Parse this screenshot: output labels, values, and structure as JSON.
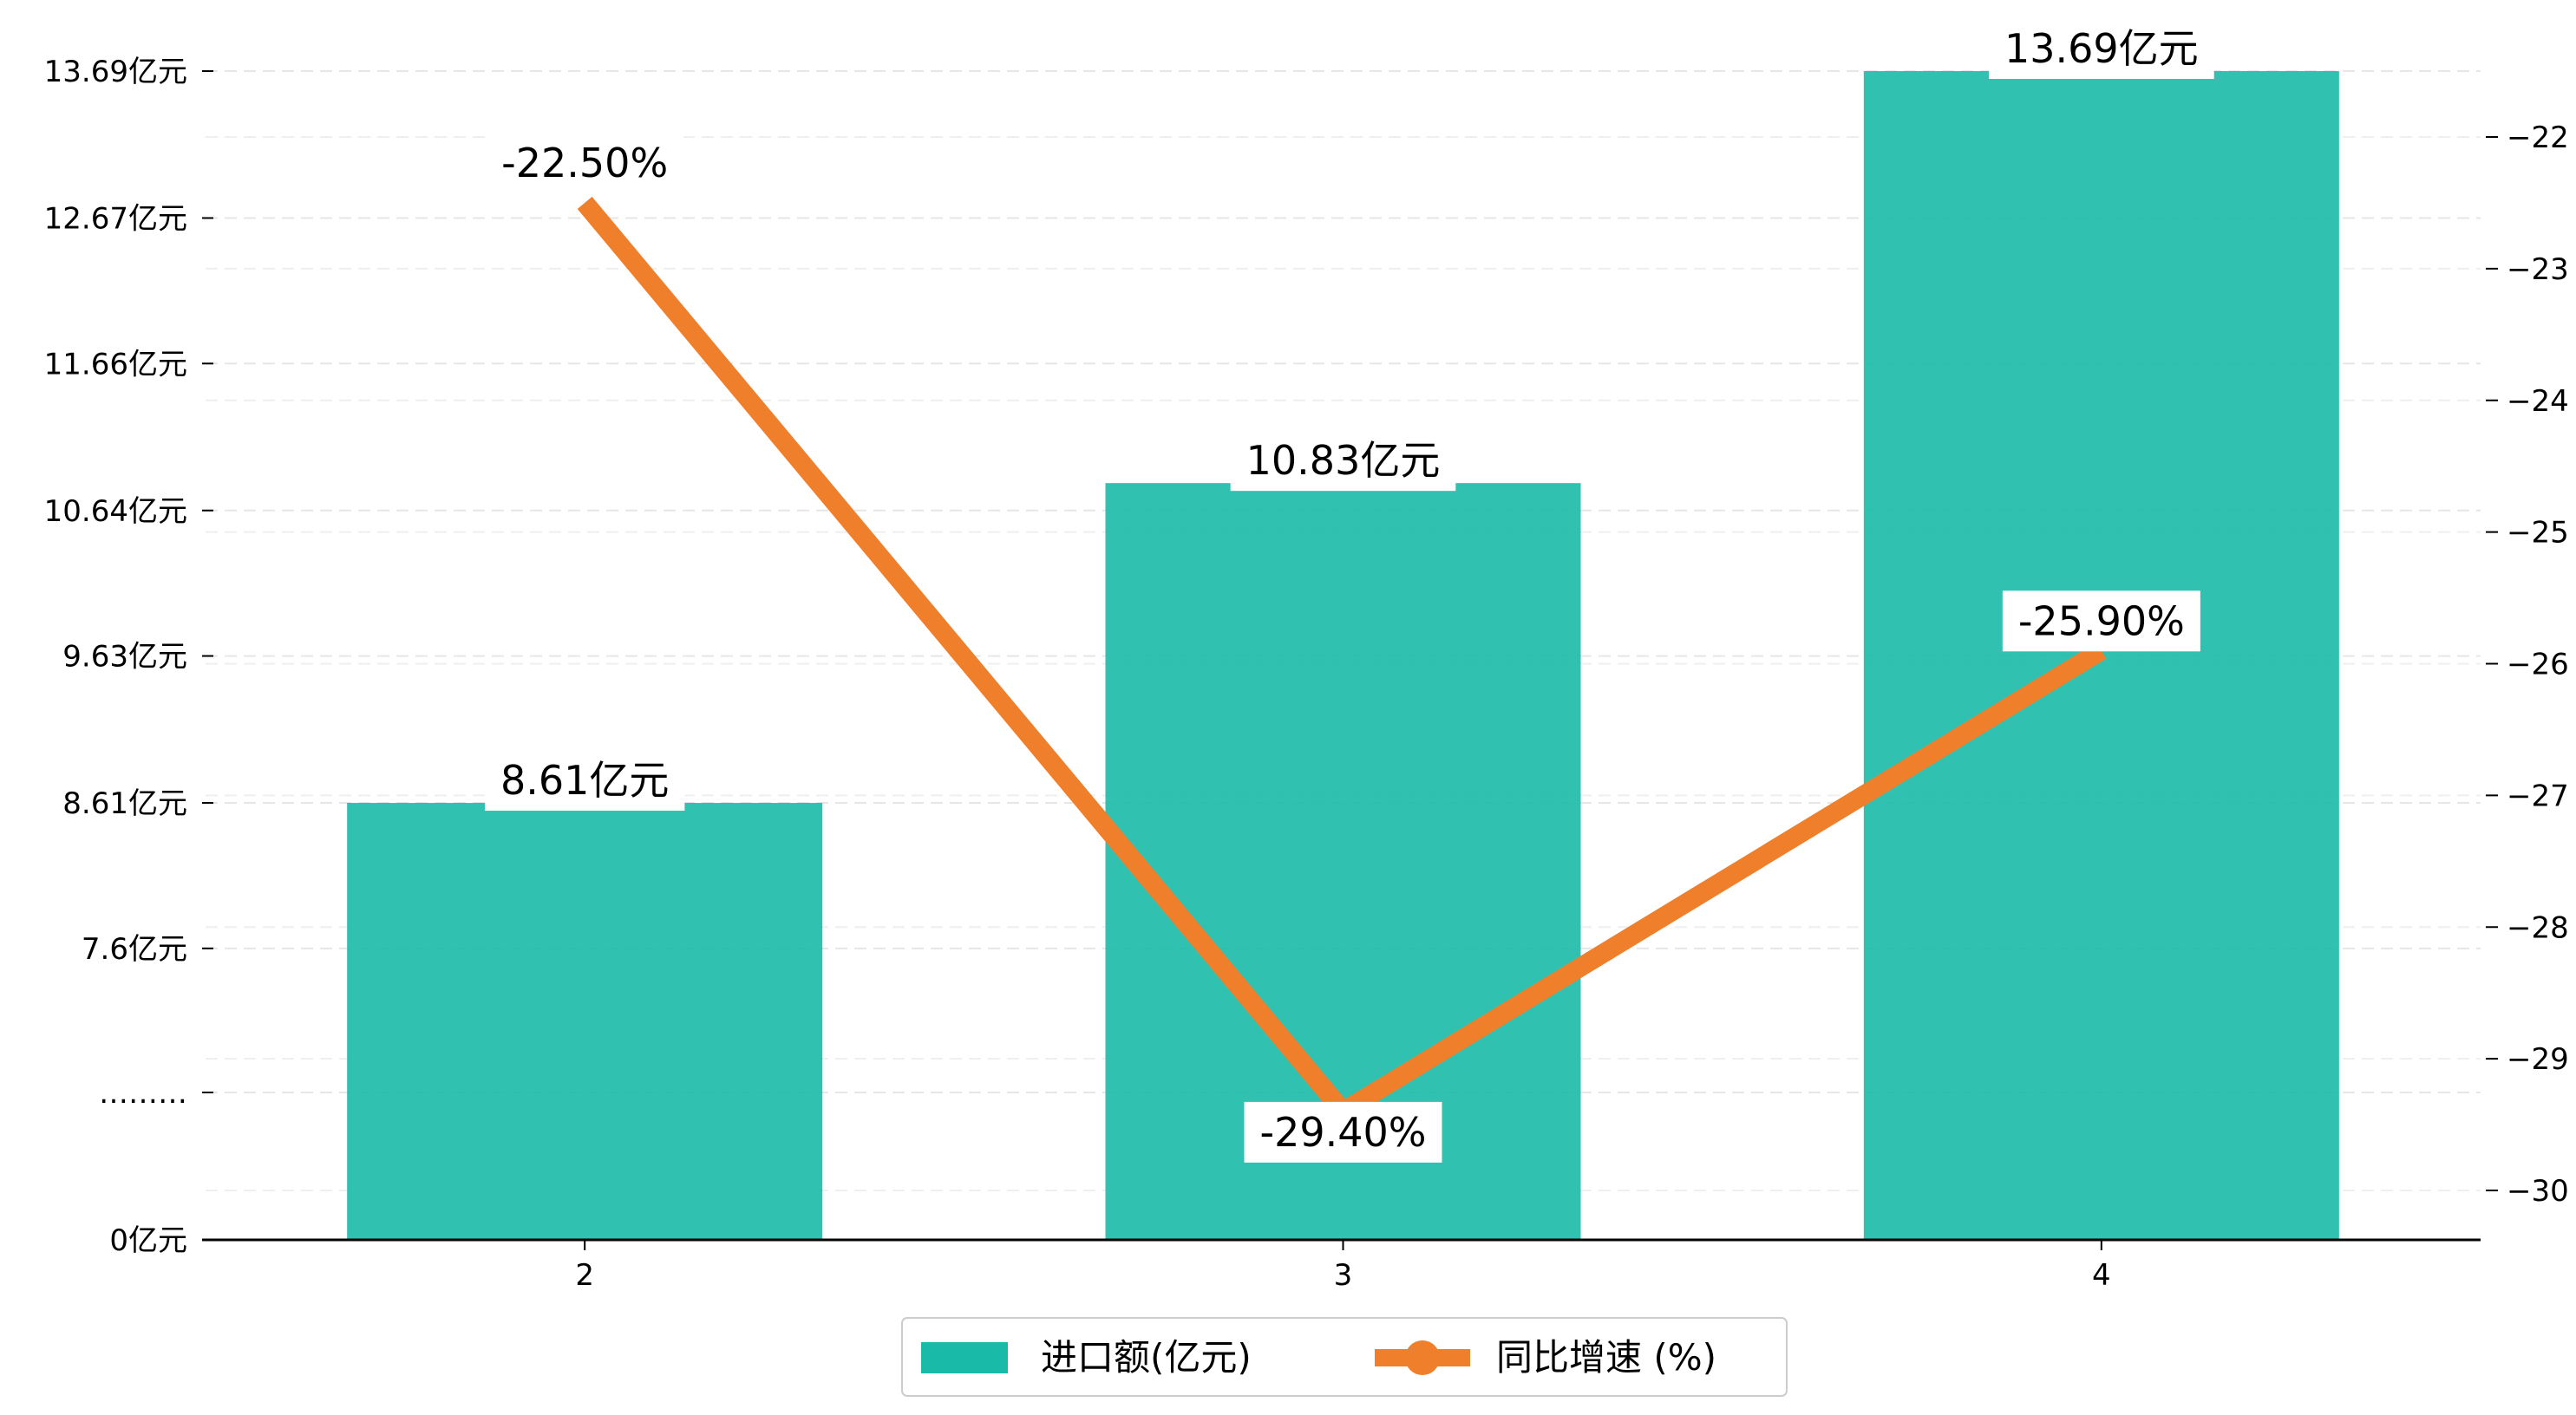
{
  "chart_data": {
    "type": "bar+line",
    "categories": [
      "2",
      "3",
      "4"
    ],
    "series": [
      {
        "name": "进口额(亿元)",
        "type": "bar",
        "axis": "left",
        "values": [
          8.61,
          10.83,
          13.69
        ],
        "value_labels": [
          "8.61亿元",
          "10.83亿元",
          "13.69亿元"
        ],
        "color": "#1ABAA8"
      },
      {
        "name": "同比增速 (%)",
        "type": "line",
        "axis": "right",
        "values": [
          -22.5,
          -29.4,
          -25.9
        ],
        "value_labels": [
          "-22.50%",
          "-29.40%",
          "-25.90%"
        ],
        "color": "#F07F2C"
      }
    ],
    "left_axis": {
      "ticks": [
        {
          "label": "0亿元",
          "value": 0
        },
        {
          "label": "………",
          "value": 6.6
        },
        {
          "label": "7.6亿元",
          "value": 7.6
        },
        {
          "label": "8.61亿元",
          "value": 8.61
        },
        {
          "label": "9.63亿元",
          "value": 9.63
        },
        {
          "label": "10.64亿元",
          "value": 10.64
        },
        {
          "label": "11.66亿元",
          "value": 11.66
        },
        {
          "label": "12.67亿元",
          "value": 12.67
        },
        {
          "label": "13.69亿元",
          "value": 13.69
        }
      ],
      "broken_axis": true
    },
    "right_axis": {
      "ylim": [
        -30.4,
        -21.5
      ],
      "ticks": [
        -30,
        -29,
        -28,
        -27,
        -26,
        -25,
        -24,
        -23,
        -22
      ]
    },
    "grid": "horizontal-dashed",
    "legend": "bottom-center"
  }
}
